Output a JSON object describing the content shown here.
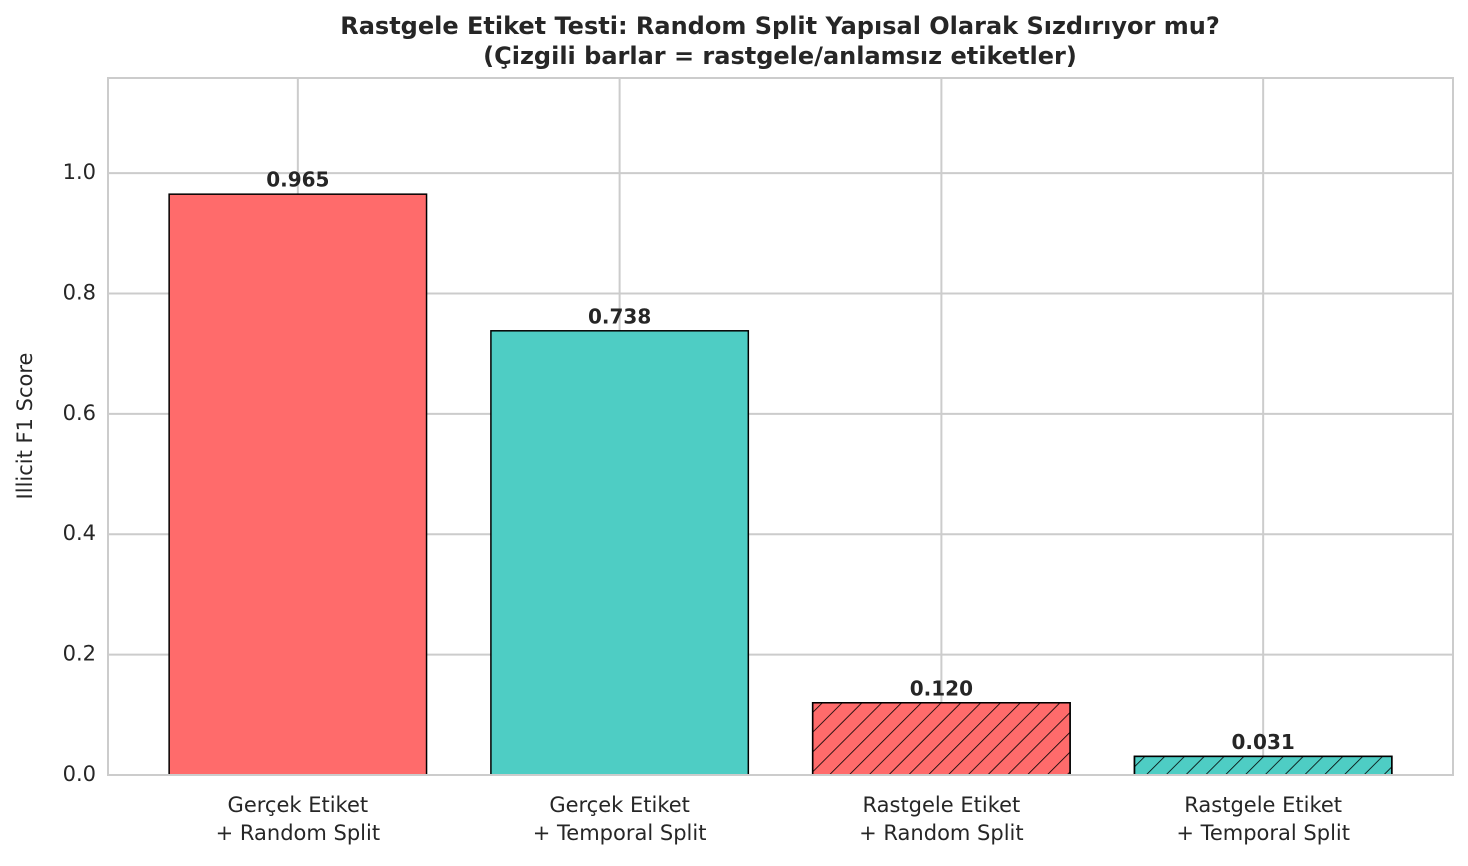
{
  "chart_data": {
    "type": "bar",
    "title": "Rastgele Etiket Testi: Random Split Yapısal Olarak Sızdırıyor mu?",
    "subtitle": "(Çizgili barlar = rastgele/anlamsız etiketler)",
    "y_label": "Illicit F1 Score",
    "categories": [
      [
        "Gerçek Etiket",
        "+ Random Split"
      ],
      [
        "Gerçek Etiket",
        "+ Temporal Split"
      ],
      [
        "Rastgele Etiket",
        "+ Random Split"
      ],
      [
        "Rastgele Etiket",
        "+ Temporal Split"
      ]
    ],
    "values": [
      0.965,
      0.738,
      0.12,
      0.031
    ],
    "value_labels": [
      "0.965",
      "0.738",
      "0.120",
      "0.031"
    ],
    "colors": [
      "#ff6b6b",
      "#4ecdc4",
      "#ff6b6b",
      "#4ecdc4"
    ],
    "hatch": [
      false,
      false,
      true,
      true
    ],
    "ylim": [
      0,
      1.158
    ],
    "yticks": [
      {
        "value": 0,
        "label": "0.0"
      },
      0.2,
      0.4,
      0.6,
      0.8,
      {
        "value": 1,
        "label": "1.0"
      }
    ],
    "grid": true
  }
}
